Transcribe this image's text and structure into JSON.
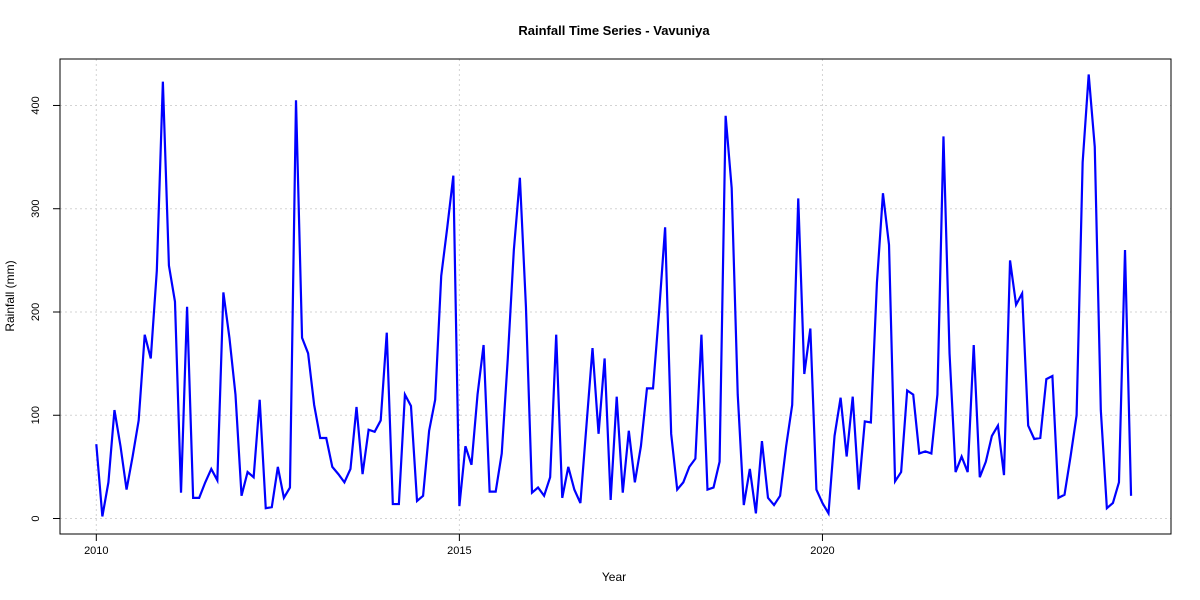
{
  "chart_data": {
    "type": "line",
    "title": "Rainfall Time Series - Vavuniya",
    "xlabel": "Year",
    "ylabel": "Rainfall (mm)",
    "xlim": [
      2009.5,
      2024.8
    ],
    "ylim": [
      -15,
      445
    ],
    "x_ticks": [
      2010,
      2015,
      2020
    ],
    "x_tick_labels": [
      "2010",
      "2015",
      "2020"
    ],
    "y_ticks": [
      0,
      100,
      200,
      300,
      400
    ],
    "y_tick_labels": [
      "0",
      "100",
      "200",
      "300",
      "400"
    ],
    "grid": true,
    "line_color": "#0000ff",
    "series": [
      {
        "x_start": 2010,
        "step": 0.0833333,
        "values": [
          72,
          2,
          35,
          105,
          70,
          28,
          60,
          95,
          178,
          155,
          240,
          423,
          245,
          210,
          25,
          205,
          20,
          20,
          35,
          48,
          37,
          219,
          175,
          120,
          22,
          45,
          40,
          115,
          10,
          11,
          50,
          20,
          30,
          405,
          175,
          160,
          110,
          78,
          78,
          50,
          43,
          35,
          48,
          108,
          43,
          86,
          84,
          95,
          180,
          14,
          14,
          120,
          109,
          17,
          22,
          85,
          115,
          235,
          282,
          332,
          12,
          70,
          52,
          120,
          168,
          26,
          26,
          63,
          155,
          260,
          330,
          205,
          25,
          30,
          22,
          40,
          178,
          20,
          50,
          28,
          15,
          90,
          165,
          82,
          155,
          18,
          118,
          25,
          85,
          35,
          70,
          126,
          126,
          200,
          282,
          82,
          28,
          35,
          50,
          58,
          178,
          28,
          30,
          55,
          390,
          320,
          120,
          13,
          48,
          5,
          75,
          20,
          13,
          22,
          70,
          110,
          310,
          140,
          184,
          28,
          15,
          5,
          80,
          117,
          60,
          118,
          28,
          94,
          93,
          228,
          315,
          265,
          36,
          45,
          124,
          120,
          63,
          65,
          63,
          120,
          370,
          160,
          45,
          60,
          45,
          168,
          40,
          55,
          80,
          90,
          42,
          250,
          207,
          218,
          90,
          77,
          78,
          135,
          138,
          20,
          23,
          60,
          100,
          345,
          430,
          360,
          105,
          10,
          15,
          35,
          260,
          22
        ]
      }
    ]
  }
}
